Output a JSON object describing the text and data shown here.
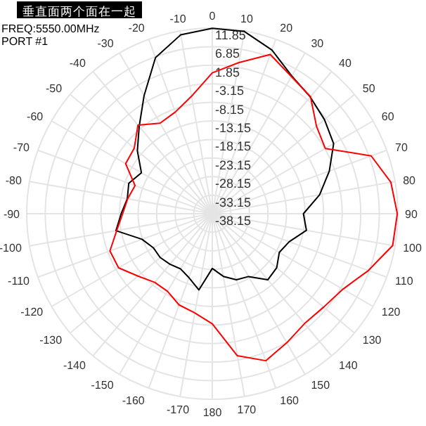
{
  "chart_data": {
    "type": "radar",
    "title": "垂直面两个面在一起",
    "categories": [
      "0",
      "10",
      "20",
      "30",
      "40",
      "50",
      "60",
      "70",
      "80",
      "90",
      "100",
      "110",
      "120",
      "130",
      "140",
      "150",
      "160",
      "170",
      "180",
      "-170",
      "-160",
      "-150",
      "-140",
      "-130",
      "-120",
      "-110",
      "-100",
      "-90",
      "-80",
      "-70",
      "-60",
      "-50",
      "-40",
      "-30",
      "-20",
      "-10"
    ],
    "series": [
      {
        "color": "#000000",
        "values": [
          11.8,
          11.7,
          8.8,
          4.7,
          2.9,
          1.3,
          -0.4,
          -4.6,
          -8.8,
          -13.6,
          -12.4,
          -16.1,
          -17.3,
          -15.5,
          -14.9,
          -18.6,
          -19.2,
          -21.0,
          -23.4,
          -17.3,
          -19.8,
          -21.0,
          -20.4,
          -19.8,
          -19.8,
          -18.0,
          -11.8,
          -13.6,
          -14.9,
          -14.2,
          -16.1,
          -11.8,
          -7.5,
          -1.4,
          6.6,
          10.8
        ]
      },
      {
        "color": "#ff0000",
        "values": [
          -0.2,
          3.2,
          7.5,
          4.5,
          3.0,
          -1.5,
          -3,
          7.4,
          10.7,
          11.7,
          11.2,
          6.6,
          2.5,
          1.0,
          0.5,
          2.0,
          4.0,
          0.7,
          -8.5,
          -11,
          -12,
          -14,
          -14,
          -12,
          -9,
          -8.8,
          -12,
          -14,
          -15,
          -16,
          -11.2,
          -10.7,
          -7,
          -10,
          -9,
          -6
        ]
      }
    ],
    "ylim": [
      -38.15,
      11.85
    ],
    "yticks": [
      -38.15,
      -33.15,
      -28.15,
      -23.15,
      -18.15,
      -13.15,
      -8.15,
      -3.15,
      1.85,
      6.85,
      11.85
    ],
    "grid": true,
    "annotations": [
      "FREQ:5550.00MHz",
      "PORT #1"
    ]
  }
}
